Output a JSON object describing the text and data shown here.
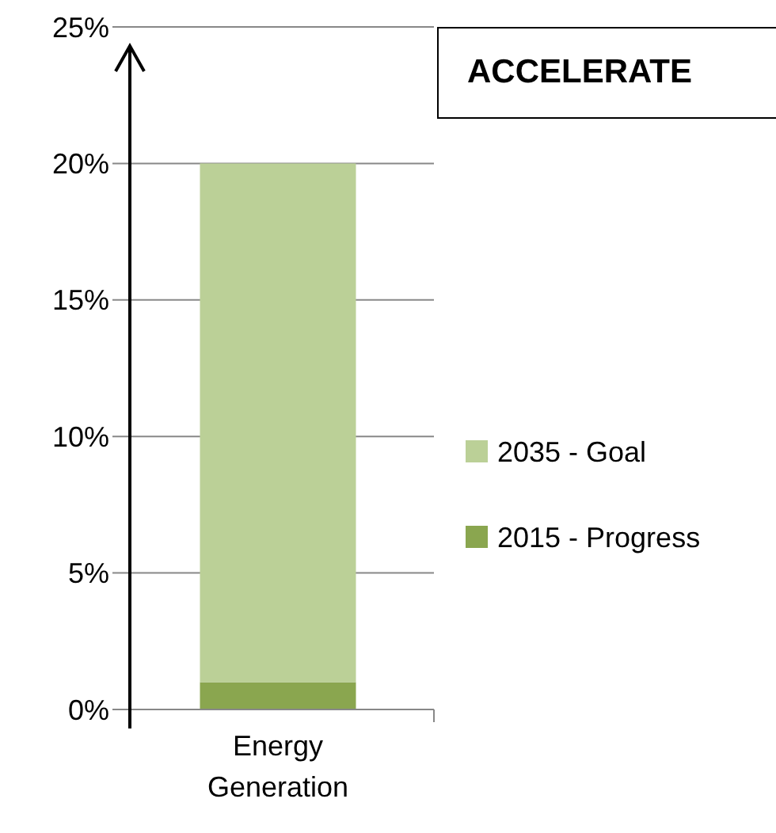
{
  "chart_data": {
    "type": "bar",
    "stacked": true,
    "categories": [
      "Energy Generation"
    ],
    "series": [
      {
        "name": "2015 - Progress",
        "color": "#8aa64f",
        "values": [
          1
        ]
      },
      {
        "name": "2035 - Goal",
        "color": "#bbd097",
        "values": [
          19
        ]
      }
    ],
    "ylim": [
      0,
      25
    ],
    "yticks": [
      {
        "value": 0,
        "label": "0%"
      },
      {
        "value": 5,
        "label": "5%"
      },
      {
        "value": 10,
        "label": "10%"
      },
      {
        "value": 15,
        "label": "15%"
      },
      {
        "value": 20,
        "label": "20%"
      },
      {
        "value": 25,
        "label": "25%"
      }
    ],
    "grid": "y",
    "legend": "right",
    "annotations": [
      "ACCELERATE"
    ]
  }
}
